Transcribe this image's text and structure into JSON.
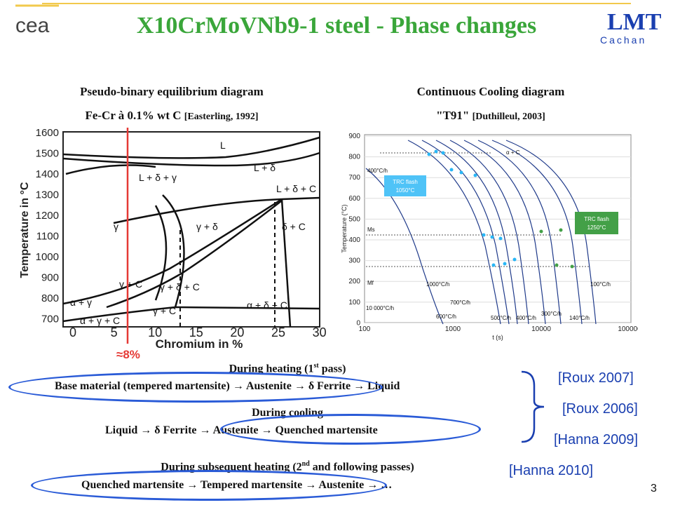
{
  "header": {
    "title": "X10CrMoVNb9-1 steel - Phase changes",
    "logo_left": "cea",
    "logo_right_top": "LMT",
    "logo_right_bottom": "Cachan"
  },
  "left_figure": {
    "caption_line1": "Pseudo-binary equilibrium diagram",
    "caption_line2_main": "Fe-Cr à 0.1% wt C ",
    "caption_line2_ref": "[Easterling, 1992]",
    "ylabel": "Temperature in °C",
    "xlabel": "Chromium in %",
    "yticks": [
      "1600",
      "1500",
      "1400",
      "1300",
      "1200",
      "1100",
      "1000",
      "900",
      "800",
      "700"
    ],
    "xticks": [
      "0",
      "5",
      "10",
      "15",
      "20",
      "25",
      "30"
    ],
    "regions": [
      "L",
      "L + δ",
      "L + δ + γ",
      "L + δ + C",
      "γ",
      "γ + δ",
      "δ + C",
      "γ + C",
      "γ + δ + C",
      "α + γ",
      "α + γ + C",
      "γ + C",
      "α + δ + C"
    ],
    "marker_label": "≈8%",
    "marker_color": "#e53935"
  },
  "right_figure": {
    "caption_line1": "Continuous Cooling diagram",
    "caption_line2_main": "\"T91\" ",
    "caption_line2_ref": "[Duthilleul, 2003]",
    "ylabel": "Temperature (°C)",
    "xlabel": "t (s)",
    "yticks": [
      "900",
      "800",
      "700",
      "600",
      "500",
      "400",
      "300",
      "200",
      "100",
      "0"
    ],
    "xticks": [
      "100",
      "1000",
      "10000",
      "100000"
    ],
    "labels": [
      "α + C",
      "400°C/h",
      "Ms",
      "Mf",
      "10 000°C/h",
      "1000°C/h",
      "700°C/h",
      "600°C/h",
      "500°C/h",
      "400°C/h",
      "300°C/h",
      "140°C/h",
      "100°C/h"
    ],
    "box1": "TRC flash\n1050°C",
    "box2": "TRC flash\n1250°C",
    "box1_color": "#4fc3f7",
    "box2_color": "#43a047"
  },
  "sequences": {
    "heating_title": "During heating (1",
    "heating_sup": "st",
    "heating_title_end": " pass)",
    "heating_line": "Base material (tempered martensite) → Austenite →  δ Ferrite → Liquid",
    "cooling_title": "During cooling",
    "cooling_line": "Liquid → δ Ferrite → Austenite → Quenched martensite",
    "subsequent_title": "During subsequent heating (2",
    "subsequent_sup": "nd",
    "subsequent_title_end": " and following passes)",
    "subsequent_line": "Quenched martensite → Tempered martensite → Austenite → …"
  },
  "references": [
    "[Roux 2007]",
    "[Roux 2006]",
    "[Hanna 2009]",
    "[Hanna 2010]"
  ],
  "page_number": "3",
  "colors": {
    "title": "#3aa63a",
    "references": "#1a3fb0",
    "ellipse": "#2a5bd7"
  }
}
